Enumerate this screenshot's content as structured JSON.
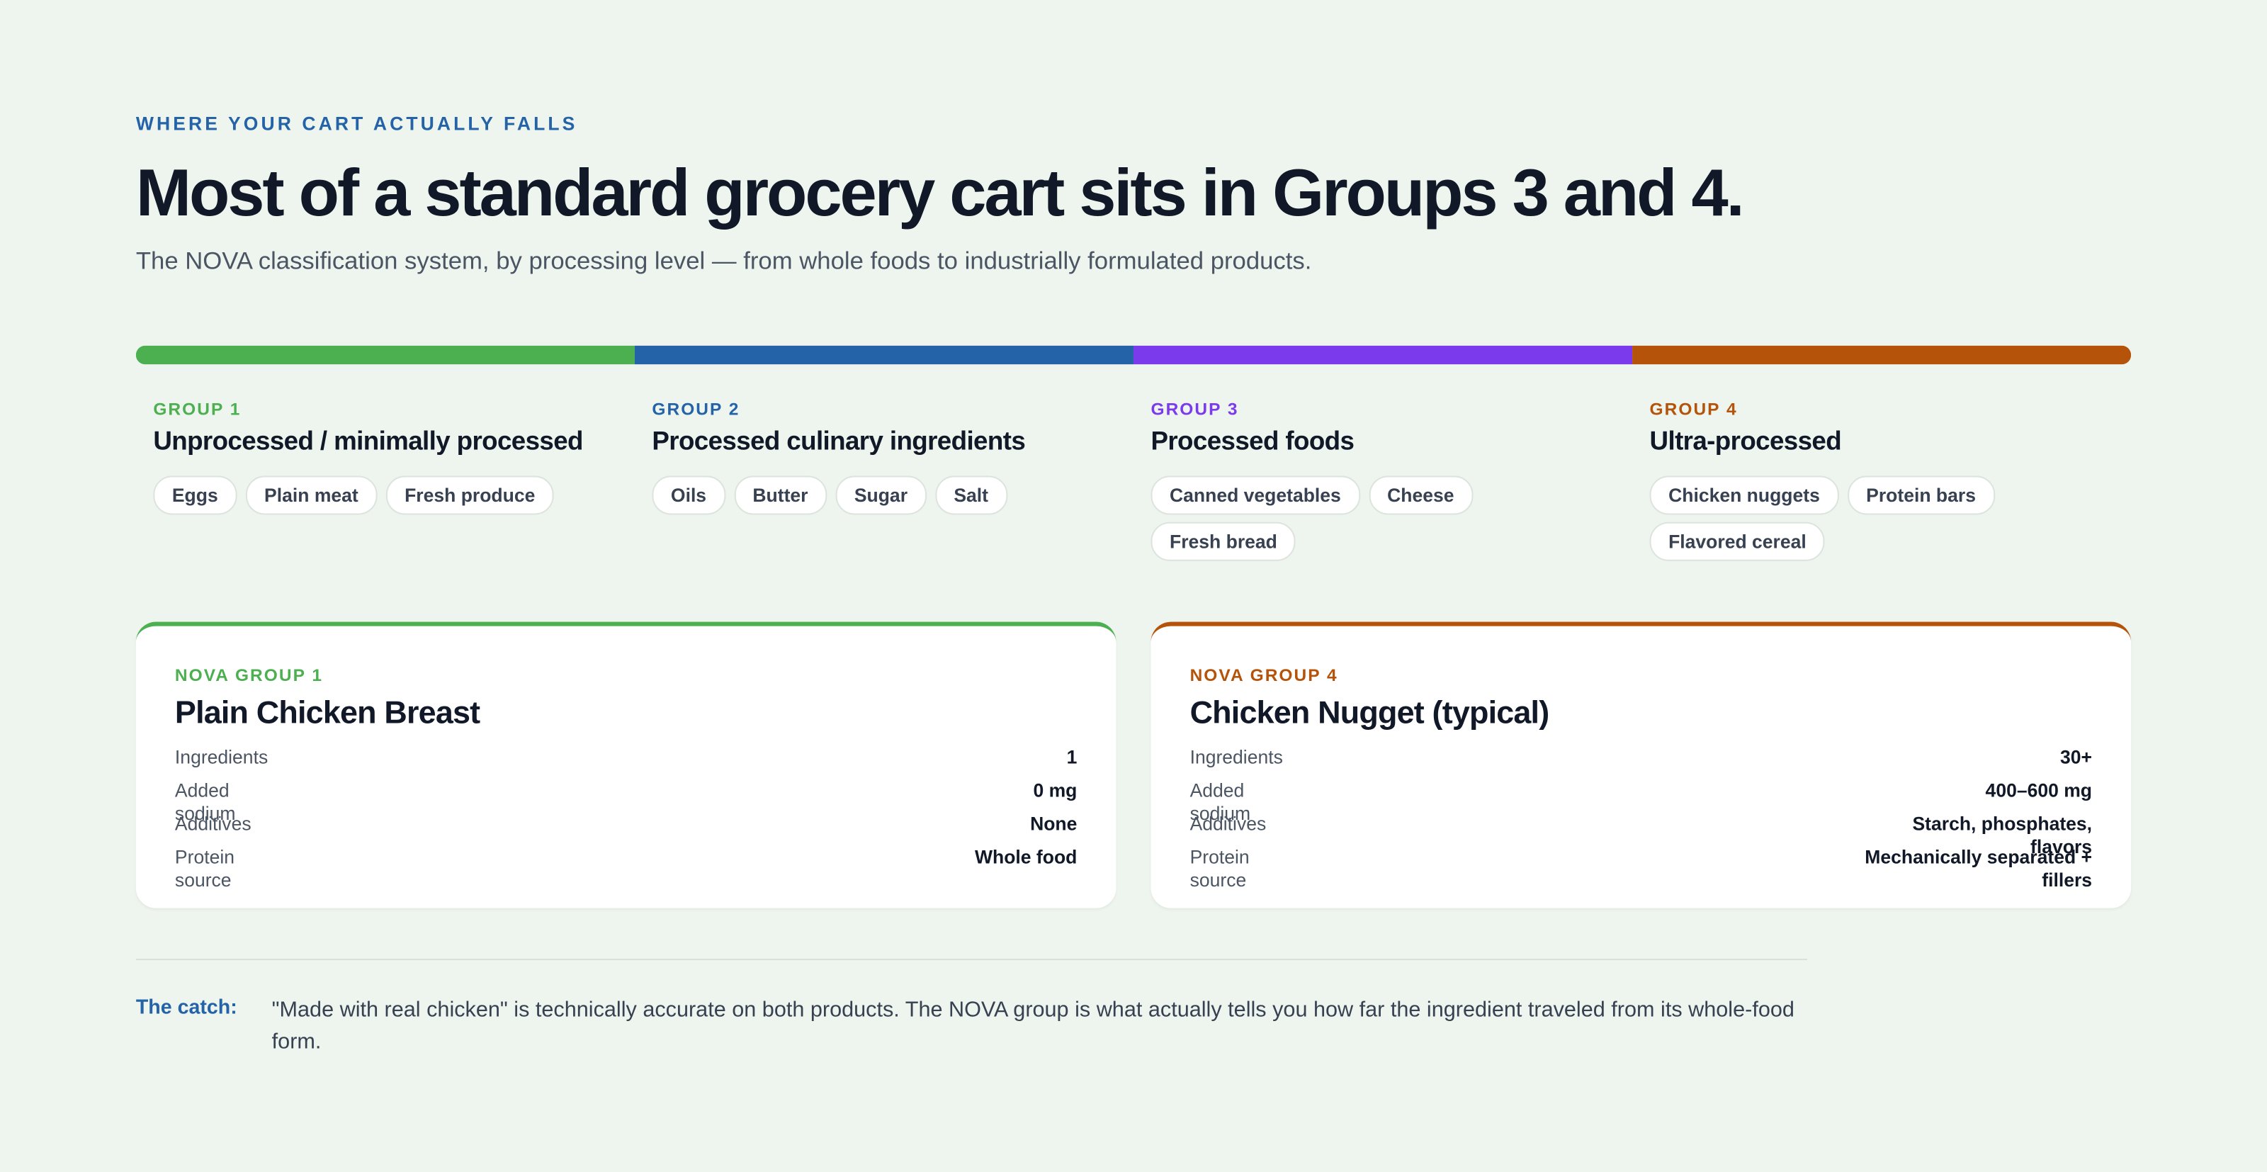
{
  "header": {
    "eyebrow": "WHERE YOUR CART ACTUALLY FALLS",
    "title": "Most of a standard grocery cart sits in Groups 3 and 4.",
    "subtitle": "The NOVA classification system, by processing level — from whole foods to industrially formulated products."
  },
  "groups": [
    {
      "label": "GROUP 1",
      "name": "Unprocessed / minimally processed",
      "items": [
        "Eggs",
        "Plain meat",
        "Fresh produce"
      ]
    },
    {
      "label": "GROUP 2",
      "name": "Processed culinary ingredients",
      "items": [
        "Oils",
        "Butter",
        "Sugar",
        "Salt"
      ]
    },
    {
      "label": "GROUP 3",
      "name": "Processed foods",
      "items": [
        "Canned vegetables",
        "Cheese",
        "Fresh bread"
      ]
    },
    {
      "label": "GROUP 4",
      "name": "Ultra-processed",
      "items": [
        "Chicken nuggets",
        "Protein bars",
        "Flavored cereal"
      ]
    }
  ],
  "cards": [
    {
      "label": "NOVA GROUP 1",
      "title": "Plain Chicken Breast",
      "rows": [
        {
          "label": "Ingredients",
          "value": "1"
        },
        {
          "label": "Added sodium",
          "value": "0 mg"
        },
        {
          "label": "Additives",
          "value": "None"
        },
        {
          "label": "Protein source",
          "value": "Whole food"
        }
      ]
    },
    {
      "label": "NOVA GROUP 4",
      "title": "Chicken Nugget (typical)",
      "rows": [
        {
          "label": "Ingredients",
          "value": "30+"
        },
        {
          "label": "Added sodium",
          "value": "400–600 mg"
        },
        {
          "label": "Additives",
          "value": "Starch, phosphates, flavors"
        },
        {
          "label": "Protein source",
          "value": "Mechanically separated + fillers"
        }
      ]
    }
  ],
  "note": {
    "label": "The catch:",
    "text": "\"Made with real chicken\" is technically accurate on both products. The NOVA group is what actually tells you how far the ingredient traveled from its whole-food form."
  }
}
